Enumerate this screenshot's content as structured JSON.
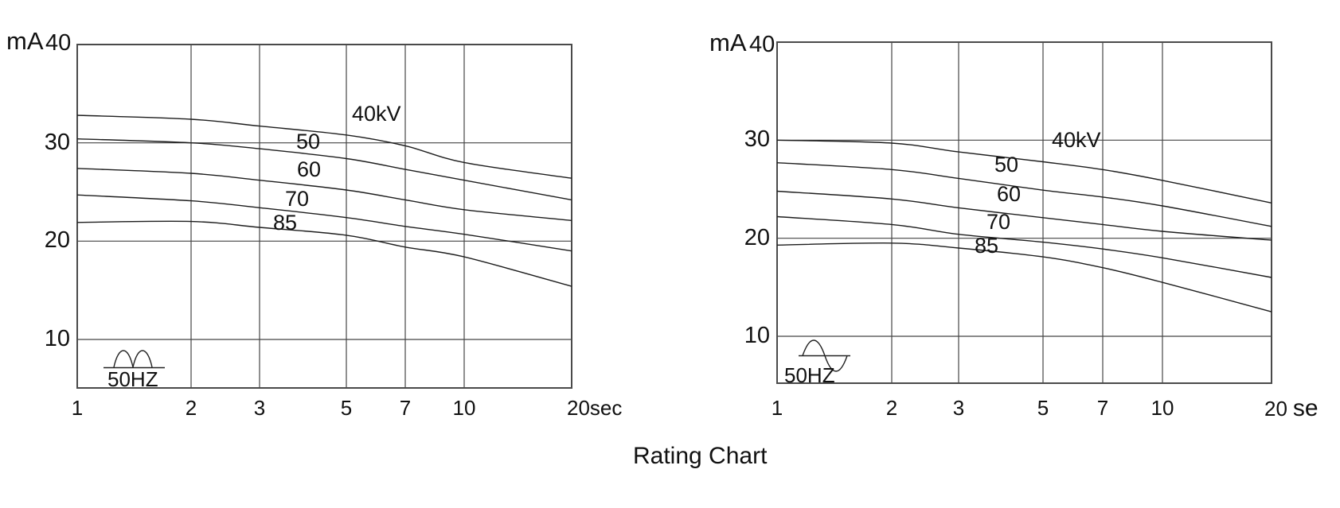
{
  "title": "Rating Chart",
  "chart_data": [
    {
      "type": "line",
      "position": "left",
      "ylabel": "mA",
      "y_ticks": [
        "40",
        "30",
        "20",
        "10"
      ],
      "y_tick_values": [
        40,
        30,
        20,
        10
      ],
      "ylim": [
        5,
        40
      ],
      "x_scale": "log",
      "x": [
        1,
        2,
        3,
        5,
        7,
        10,
        20
      ],
      "x_tick_labels": [
        "1",
        "2",
        "3",
        "5",
        "7",
        "10",
        "20"
      ],
      "x_unit": "sec",
      "grid": true,
      "annotation": "50HZ",
      "waveform_icon": "full-wave-rectified-sine",
      "series": [
        {
          "name": "40kV",
          "values": [
            32.8,
            32.4,
            31.7,
            30.8,
            29.7,
            28.0,
            26.4
          ]
        },
        {
          "name": "50",
          "values": [
            30.4,
            30.0,
            29.4,
            28.4,
            27.3,
            26.2,
            24.2
          ]
        },
        {
          "name": "60",
          "values": [
            27.4,
            26.9,
            26.2,
            25.2,
            24.2,
            23.2,
            22.1
          ]
        },
        {
          "name": "70",
          "values": [
            24.7,
            24.1,
            23.4,
            22.4,
            21.5,
            20.7,
            19.0
          ]
        },
        {
          "name": "85",
          "values": [
            21.9,
            22.0,
            21.4,
            20.6,
            19.4,
            18.4,
            15.4
          ]
        }
      ]
    },
    {
      "type": "line",
      "position": "right",
      "ylabel": "mA",
      "y_ticks": [
        "40",
        "30",
        "20",
        "10"
      ],
      "y_tick_values": [
        40,
        30,
        20,
        10
      ],
      "ylim": [
        5,
        40
      ],
      "x_scale": "log",
      "x": [
        1,
        2,
        3,
        5,
        7,
        10,
        20
      ],
      "x_tick_labels": [
        "1",
        "2",
        "3",
        "5",
        "7",
        "10",
        "20"
      ],
      "x_unit": "se",
      "grid": true,
      "annotation": "50HZ",
      "waveform_icon": "sine",
      "series": [
        {
          "name": "40kV",
          "values": [
            30.0,
            29.7,
            28.8,
            27.8,
            27.0,
            25.9,
            23.6
          ]
        },
        {
          "name": "50",
          "values": [
            27.7,
            27.0,
            26.1,
            24.9,
            24.2,
            23.3,
            21.2
          ]
        },
        {
          "name": "60",
          "values": [
            24.8,
            24.0,
            23.1,
            22.1,
            21.4,
            20.7,
            19.8
          ]
        },
        {
          "name": "70",
          "values": [
            22.2,
            21.4,
            20.4,
            19.6,
            18.9,
            18.0,
            16.0
          ]
        },
        {
          "name": "85",
          "values": [
            19.3,
            19.5,
            19.0,
            18.1,
            17.0,
            15.5,
            12.5
          ]
        }
      ]
    }
  ]
}
